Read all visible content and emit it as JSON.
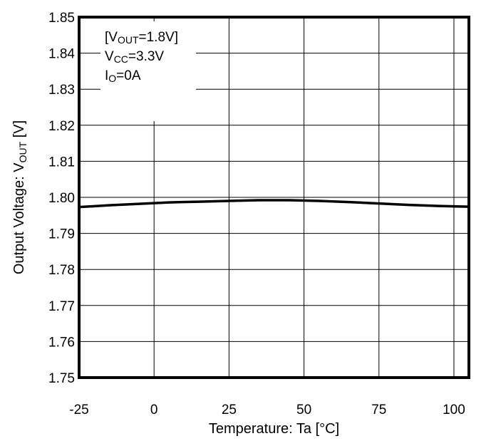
{
  "chart_data": {
    "type": "line",
    "title": "",
    "xlabel": "Temperature: Ta [°C]",
    "ylabel": {
      "main": "Output Voltage: V",
      "sub": "OUT",
      "unit": " [V]"
    },
    "xlim": [
      -25,
      105
    ],
    "ylim": [
      1.75,
      1.85
    ],
    "x_ticks": [
      -25,
      0,
      25,
      50,
      75,
      100
    ],
    "x_tick_labels": [
      "-25",
      "0",
      "25",
      "50",
      "75",
      "100"
    ],
    "y_ticks": [
      1.75,
      1.76,
      1.77,
      1.78,
      1.79,
      1.8,
      1.81,
      1.82,
      1.83,
      1.84,
      1.85
    ],
    "y_tick_labels": [
      "1.75",
      "1.76",
      "1.77",
      "1.78",
      "1.79",
      "1.80",
      "1.81",
      "1.82",
      "1.83",
      "1.84",
      "1.85"
    ],
    "grid": true,
    "series": [
      {
        "x": [
          -25,
          -15,
          -5,
          5,
          15,
          25,
          35,
          45,
          55,
          65,
          75,
          85,
          95,
          105
        ],
        "y": [
          1.7973,
          1.7978,
          1.7982,
          1.7986,
          1.7988,
          1.799,
          1.7992,
          1.7992,
          1.799,
          1.7987,
          1.7983,
          1.7979,
          1.7976,
          1.7974
        ],
        "color": "#000000"
      }
    ],
    "annotations": [
      {
        "parts": [
          {
            "t": "[V"
          },
          {
            "t": "OUT",
            "sub": true
          },
          {
            "t": "=1.8V]"
          }
        ]
      },
      {
        "parts": [
          {
            "t": "V"
          },
          {
            "t": "CC",
            "sub": true
          },
          {
            "t": "=3.3V"
          }
        ]
      },
      {
        "parts": [
          {
            "t": "I"
          },
          {
            "t": "O",
            "sub": true
          },
          {
            "t": "=0A"
          }
        ]
      }
    ]
  }
}
